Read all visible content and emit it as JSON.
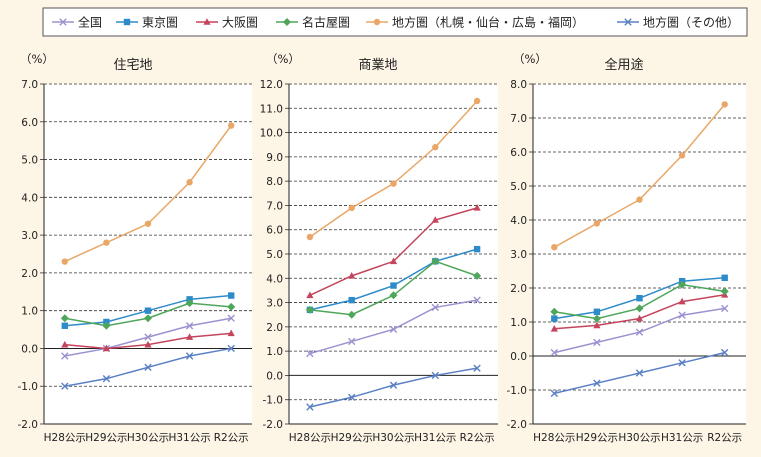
{
  "legend": [
    {
      "name": "全国",
      "color": "#9b93d0",
      "marker": "x"
    },
    {
      "name": "東京圏",
      "color": "#2e8bc9",
      "marker": "square"
    },
    {
      "name": "大阪圏",
      "color": "#c4455d",
      "marker": "triangle"
    },
    {
      "name": "名古屋圏",
      "color": "#4ea65a",
      "marker": "diamond"
    },
    {
      "name": "地方圏（札幌・仙台・広島・福岡）",
      "color": "#e8a766",
      "marker": "circle"
    },
    {
      "name": "地方圏（その他）",
      "color": "#5a80c4",
      "marker": "x"
    }
  ],
  "chart_data": [
    {
      "type": "line",
      "title": "住宅地",
      "unit": "（%）",
      "categories": [
        "H28公示",
        "H29公示",
        "H30公示",
        "H31公示",
        "R2公示"
      ],
      "ylim": [
        -2.0,
        7.0
      ],
      "yticks": [
        "7.0",
        "6.0",
        "5.0",
        "4.0",
        "3.0",
        "2.0",
        "1.0",
        "0.0",
        "-1.0",
        "-2.0"
      ],
      "series": [
        {
          "name": "全国",
          "values": [
            -0.2,
            0.0,
            0.3,
            0.6,
            0.8
          ]
        },
        {
          "name": "東京圏",
          "values": [
            0.6,
            0.7,
            1.0,
            1.3,
            1.4
          ]
        },
        {
          "name": "大阪圏",
          "values": [
            0.1,
            0.0,
            0.1,
            0.3,
            0.4
          ]
        },
        {
          "name": "名古屋圏",
          "values": [
            0.8,
            0.6,
            0.8,
            1.2,
            1.1
          ]
        },
        {
          "name": "地方圏（札幌・仙台・広島・福岡）",
          "values": [
            2.3,
            2.8,
            3.3,
            4.4,
            5.9
          ]
        },
        {
          "name": "地方圏（その他）",
          "values": [
            -1.0,
            -0.8,
            -0.5,
            -0.2,
            0.0
          ]
        }
      ]
    },
    {
      "type": "line",
      "title": "商業地",
      "unit": "（%）",
      "categories": [
        "H28公示",
        "H29公示",
        "H30公示",
        "H31公示",
        "R2公示"
      ],
      "ylim": [
        -2.0,
        12.0
      ],
      "yticks": [
        "12.0",
        "11.0",
        "10.0",
        "9.0",
        "8.0",
        "7.0",
        "6.0",
        "5.0",
        "4.0",
        "3.0",
        "2.0",
        "1.0",
        "0.0",
        "-1.0",
        "-2.0"
      ],
      "series": [
        {
          "name": "全国",
          "values": [
            0.9,
            1.4,
            1.9,
            2.8,
            3.1
          ]
        },
        {
          "name": "東京圏",
          "values": [
            2.7,
            3.1,
            3.7,
            4.7,
            5.2
          ]
        },
        {
          "name": "大阪圏",
          "values": [
            3.3,
            4.1,
            4.7,
            6.4,
            6.9
          ]
        },
        {
          "name": "名古屋圏",
          "values": [
            2.7,
            2.5,
            3.3,
            4.7,
            4.1
          ]
        },
        {
          "name": "地方圏（札幌・仙台・広島・福岡）",
          "values": [
            5.7,
            6.9,
            7.9,
            9.4,
            11.3
          ]
        },
        {
          "name": "地方圏（その他）",
          "values": [
            -1.3,
            -0.9,
            -0.4,
            0.0,
            0.3
          ]
        }
      ]
    },
    {
      "type": "line",
      "title": "全用途",
      "unit": "（%）",
      "categories": [
        "H28公示",
        "H29公示",
        "H30公示",
        "H31公示",
        "R2公示"
      ],
      "ylim": [
        -2.0,
        8.0
      ],
      "yticks": [
        "8.0",
        "7.0",
        "6.0",
        "5.0",
        "4.0",
        "3.0",
        "2.0",
        "1.0",
        "0.0",
        "-1.0",
        "-2.0"
      ],
      "series": [
        {
          "name": "全国",
          "values": [
            0.1,
            0.4,
            0.7,
            1.2,
            1.4
          ]
        },
        {
          "name": "東京圏",
          "values": [
            1.1,
            1.3,
            1.7,
            2.2,
            2.3
          ]
        },
        {
          "name": "大阪圏",
          "values": [
            0.8,
            0.9,
            1.1,
            1.6,
            1.8
          ]
        },
        {
          "name": "名古屋圏",
          "values": [
            1.3,
            1.1,
            1.4,
            2.1,
            1.9
          ]
        },
        {
          "name": "地方圏（札幌・仙台・広島・福岡）",
          "values": [
            3.2,
            3.9,
            4.6,
            5.9,
            7.4
          ]
        },
        {
          "name": "地方圏（その他）",
          "values": [
            -1.1,
            -0.8,
            -0.5,
            -0.2,
            0.1
          ]
        }
      ]
    }
  ]
}
